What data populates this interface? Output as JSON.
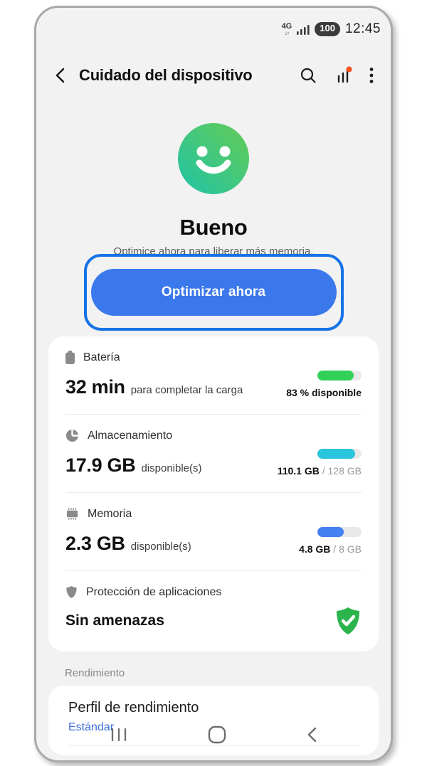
{
  "status_bar": {
    "network_badge": "4G",
    "battery_level": "100",
    "time": "12:45"
  },
  "header": {
    "title": "Cuidado del dispositivo"
  },
  "hero": {
    "status": "Bueno",
    "subtitle": "Optimice ahora para liberar más memoria.",
    "button_label": "Optimizar ahora"
  },
  "status_card": {
    "battery": {
      "label": "Batería",
      "value": "32 min",
      "note": "para completar la carga",
      "percent": 83,
      "caption": "83 % disponible"
    },
    "storage": {
      "label": "Almacenamiento",
      "value": "17.9 GB",
      "note": "disponible(s)",
      "percent": 86,
      "caption_used": "110.1 GB",
      "caption_total": " / 128 GB"
    },
    "memory": {
      "label": "Memoria",
      "value": "2.3 GB",
      "note": "disponible(s)",
      "percent": 60,
      "caption_used": "4.8 GB",
      "caption_total": " / 8 GB"
    },
    "protection": {
      "label": "Protección de aplicaciones",
      "value": "Sin amenazas"
    }
  },
  "performance": {
    "section_label": "Rendimiento",
    "title": "Perfil de rendimiento",
    "value": "Estándar"
  },
  "colors": {
    "accent_blue": "#3B78EC",
    "highlight_border": "#1673E6",
    "battery_green": "#31D158",
    "storage_cyan": "#29C4DD",
    "memory_blue": "#4580F0",
    "shield_green": "#2DB44D",
    "link_blue": "#3E6FD9",
    "stats_badge_orange": "#F4511E",
    "smiley_gradient_start": "#1FC3A7",
    "smiley_gradient_end": "#66CC55"
  },
  "icons": {
    "back": "left-chevron",
    "search": "magnifier",
    "stats": "bar-chart-with-badge",
    "more": "vertical-ellipsis",
    "battery": "battery-body",
    "storage": "pie-chart",
    "memory": "ram-chip",
    "protection": "shield",
    "protection_status": "shield-check",
    "nav_recents": "three-vertical-lines",
    "nav_home": "rounded-square",
    "nav_back": "left-chevron"
  }
}
